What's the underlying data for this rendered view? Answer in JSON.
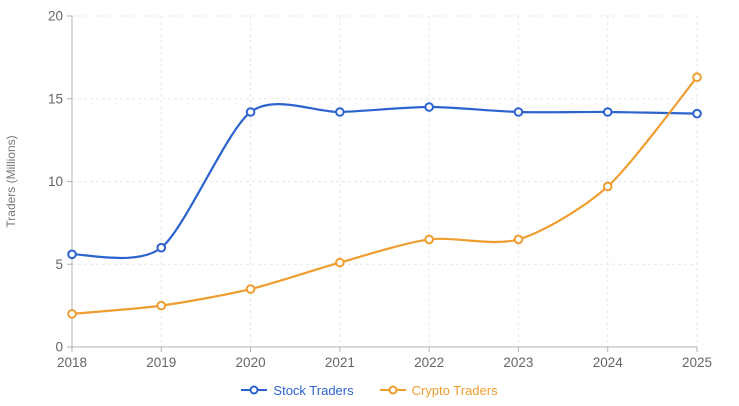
{
  "chart_data": {
    "type": "line",
    "title": "",
    "xlabel": "",
    "ylabel": "Traders (Millions)",
    "x": [
      "2018",
      "2019",
      "2020",
      "2021",
      "2022",
      "2023",
      "2024",
      "2025"
    ],
    "series": [
      {
        "name": "Stock Traders",
        "color": "#2d63cf",
        "values": [
          5.6,
          6.0,
          14.2,
          14.2,
          14.5,
          14.2,
          14.2,
          14.1
        ]
      },
      {
        "name": "Crypto Traders",
        "color": "#ef9d2e",
        "values": [
          2.0,
          2.5,
          3.5,
          5.1,
          6.5,
          6.5,
          9.7,
          16.3
        ]
      }
    ],
    "ylim": [
      0,
      20
    ],
    "yticks": [
      0,
      5,
      10,
      15,
      20
    ],
    "grid": true,
    "grid_style": "dashed",
    "legend_position": "bottom",
    "colors": {
      "grid": "#e7e7e7",
      "axis": "#b3b3b3",
      "tick_text": "#666666",
      "axis_title_text": "#777777",
      "background": "#ffffff",
      "point_fill": "#ffffff"
    }
  }
}
